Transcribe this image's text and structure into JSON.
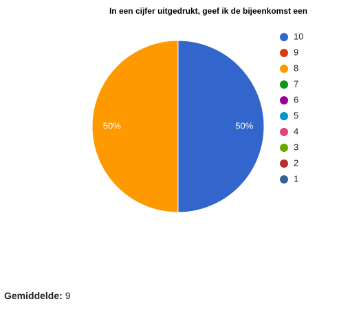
{
  "chart_data": {
    "type": "pie",
    "title": "In een cijfer uitgedrukt, geef ik de bijeenkomst een",
    "categories": [
      "10",
      "9",
      "8",
      "7",
      "6",
      "5",
      "4",
      "3",
      "2",
      "1"
    ],
    "values": [
      50,
      0,
      50,
      0,
      0,
      0,
      0,
      0,
      0,
      0
    ],
    "value_labels": [
      "50%",
      null,
      "50%",
      null,
      null,
      null,
      null,
      null,
      null,
      null
    ],
    "colors": [
      "#3366cc",
      "#dc3912",
      "#ff9900",
      "#109618",
      "#990099",
      "#0099c6",
      "#dd4477",
      "#66aa00",
      "#b82e2e",
      "#316395"
    ],
    "legend": "right"
  },
  "footer": {
    "label": "Gemiddelde:",
    "value": 9
  }
}
